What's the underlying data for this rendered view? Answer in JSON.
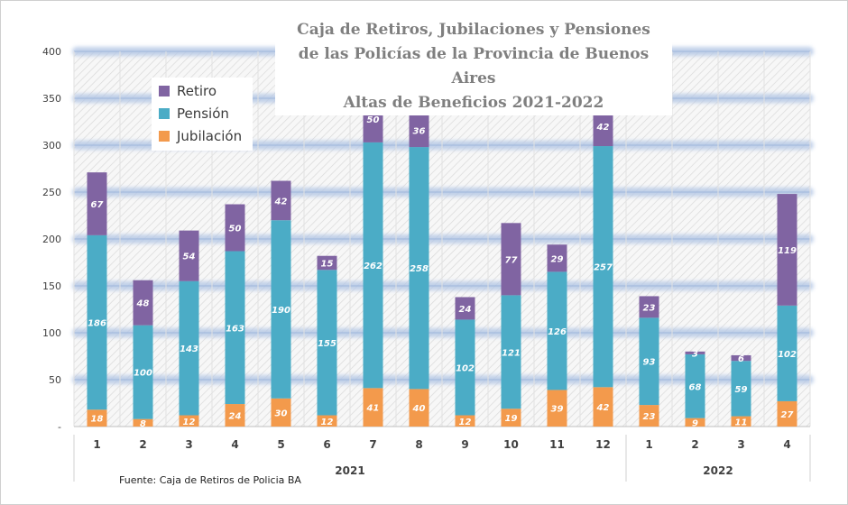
{
  "chart_data": {
    "type": "bar",
    "stacked": true,
    "title_lines": [
      "Caja de Retiros, Jubilaciones y Pensiones",
      "de las Policías de la Provincia de Buenos Aires",
      "Altas de Beneficios 2021-2022"
    ],
    "categories": [
      "1",
      "2",
      "3",
      "4",
      "5",
      "6",
      "7",
      "8",
      "9",
      "10",
      "11",
      "12",
      "1",
      "2",
      "3",
      "4"
    ],
    "groups": [
      {
        "label": "2021",
        "count": 12
      },
      {
        "label": "2022",
        "count": 4
      }
    ],
    "series": [
      {
        "name": "Jubilación",
        "color": "#f39a4c",
        "values": [
          18,
          8,
          12,
          24,
          30,
          12,
          41,
          40,
          12,
          19,
          39,
          42,
          23,
          9,
          11,
          27
        ]
      },
      {
        "name": "Pensión",
        "color": "#4bacc6",
        "values": [
          186,
          100,
          143,
          163,
          190,
          155,
          262,
          258,
          102,
          121,
          126,
          257,
          93,
          68,
          59,
          102
        ]
      },
      {
        "name": "Retiro",
        "color": "#8064a2",
        "values": [
          67,
          48,
          54,
          50,
          42,
          15,
          50,
          36,
          24,
          77,
          29,
          42,
          23,
          3,
          6,
          119
        ]
      }
    ],
    "legend_order": [
      "Retiro",
      "Pensión",
      "Jubilación"
    ],
    "legend_position": "top-left",
    "ylim": [
      0,
      400
    ],
    "y_ticks": [
      "-",
      "50",
      "100",
      "150",
      "200",
      "250",
      "300",
      "350",
      "400"
    ],
    "grid": true,
    "xlabel": "",
    "ylabel": ""
  },
  "source": "Fuente: Caja de Retiros de Policia BA"
}
